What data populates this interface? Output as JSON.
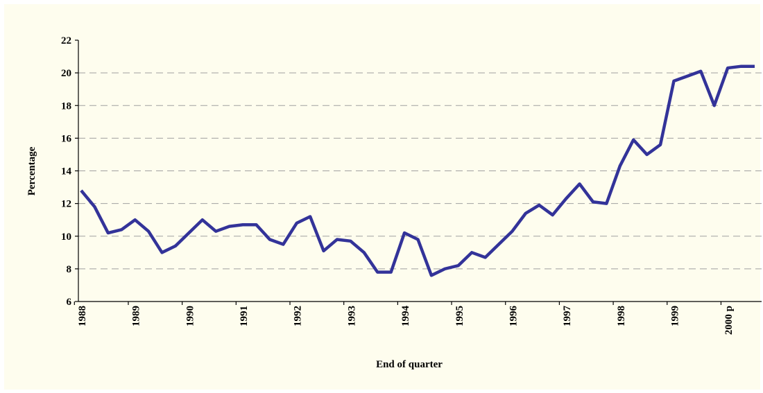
{
  "chart_data": {
    "type": "line",
    "x_label": "End of quarter",
    "y_label": "Percentage",
    "categories": [
      "1988",
      null,
      null,
      null,
      "1989",
      null,
      null,
      null,
      "1990",
      null,
      null,
      null,
      "1991",
      null,
      null,
      null,
      "1992",
      null,
      null,
      null,
      "1993",
      null,
      null,
      null,
      "1994",
      null,
      null,
      null,
      "1995",
      null,
      null,
      null,
      "1996",
      null,
      null,
      null,
      "1997",
      null,
      null,
      null,
      "1998",
      null,
      null,
      null,
      "1999",
      null,
      null,
      null,
      "2000 p",
      null,
      null
    ],
    "series": [
      {
        "color": "#333399",
        "values": [
          12.8,
          11.8,
          10.2,
          10.4,
          11.0,
          10.3,
          9.0,
          9.4,
          10.2,
          11.0,
          10.3,
          10.6,
          10.7,
          10.7,
          9.8,
          9.5,
          10.8,
          11.2,
          9.1,
          9.8,
          9.7,
          9.0,
          7.8,
          7.8,
          10.2,
          9.8,
          7.6,
          8.0,
          8.2,
          9.0,
          8.7,
          9.5,
          10.3,
          11.4,
          11.9,
          11.3,
          12.3,
          13.2,
          12.1,
          12.0,
          14.3,
          15.9,
          15.0,
          15.6,
          19.5,
          19.8,
          20.1,
          18.0,
          20.3,
          20.4,
          20.4
        ]
      }
    ],
    "ylim": [
      6,
      22
    ],
    "yticks": [
      6,
      8,
      10,
      12,
      14,
      16,
      18,
      20,
      22
    ],
    "grid": true
  }
}
